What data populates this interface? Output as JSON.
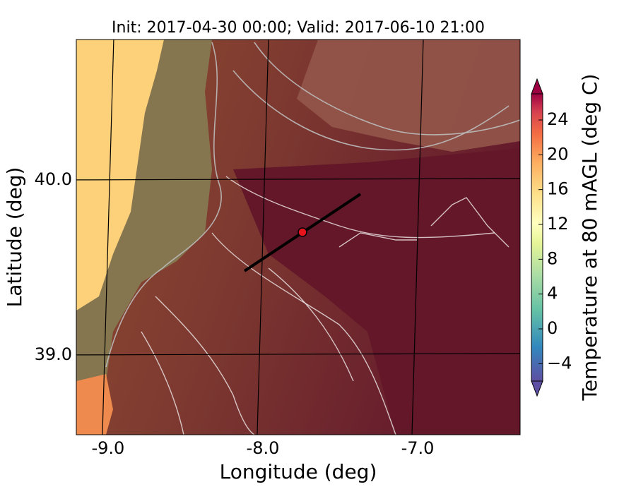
{
  "chart_data": {
    "type": "map",
    "title": "Init: 2017-04-30 00:00; Valid: 2017-06-10 21:00",
    "x_label": "Longitude (deg)",
    "y_label": "Latitude (deg)",
    "xlim": [
      -9.205,
      -6.338
    ],
    "ylim": [
      38.544,
      40.802
    ],
    "xticks": [
      {
        "value": -9,
        "label": "-9.0"
      },
      {
        "value": -8,
        "label": "-8.0"
      },
      {
        "value": -7,
        "label": "-7.0"
      }
    ],
    "yticks": [
      {
        "value": 39,
        "label": "39.0"
      },
      {
        "value": 40,
        "label": "40.0"
      }
    ],
    "grid": true,
    "colorbar": {
      "label": "Temperature at 80 mAGL (deg C)",
      "lim": [
        -6,
        27
      ],
      "ticks": [
        {
          "value": -4,
          "label": "−4"
        },
        0,
        4,
        8,
        12,
        16,
        20,
        24
      ]
    }
  }
}
